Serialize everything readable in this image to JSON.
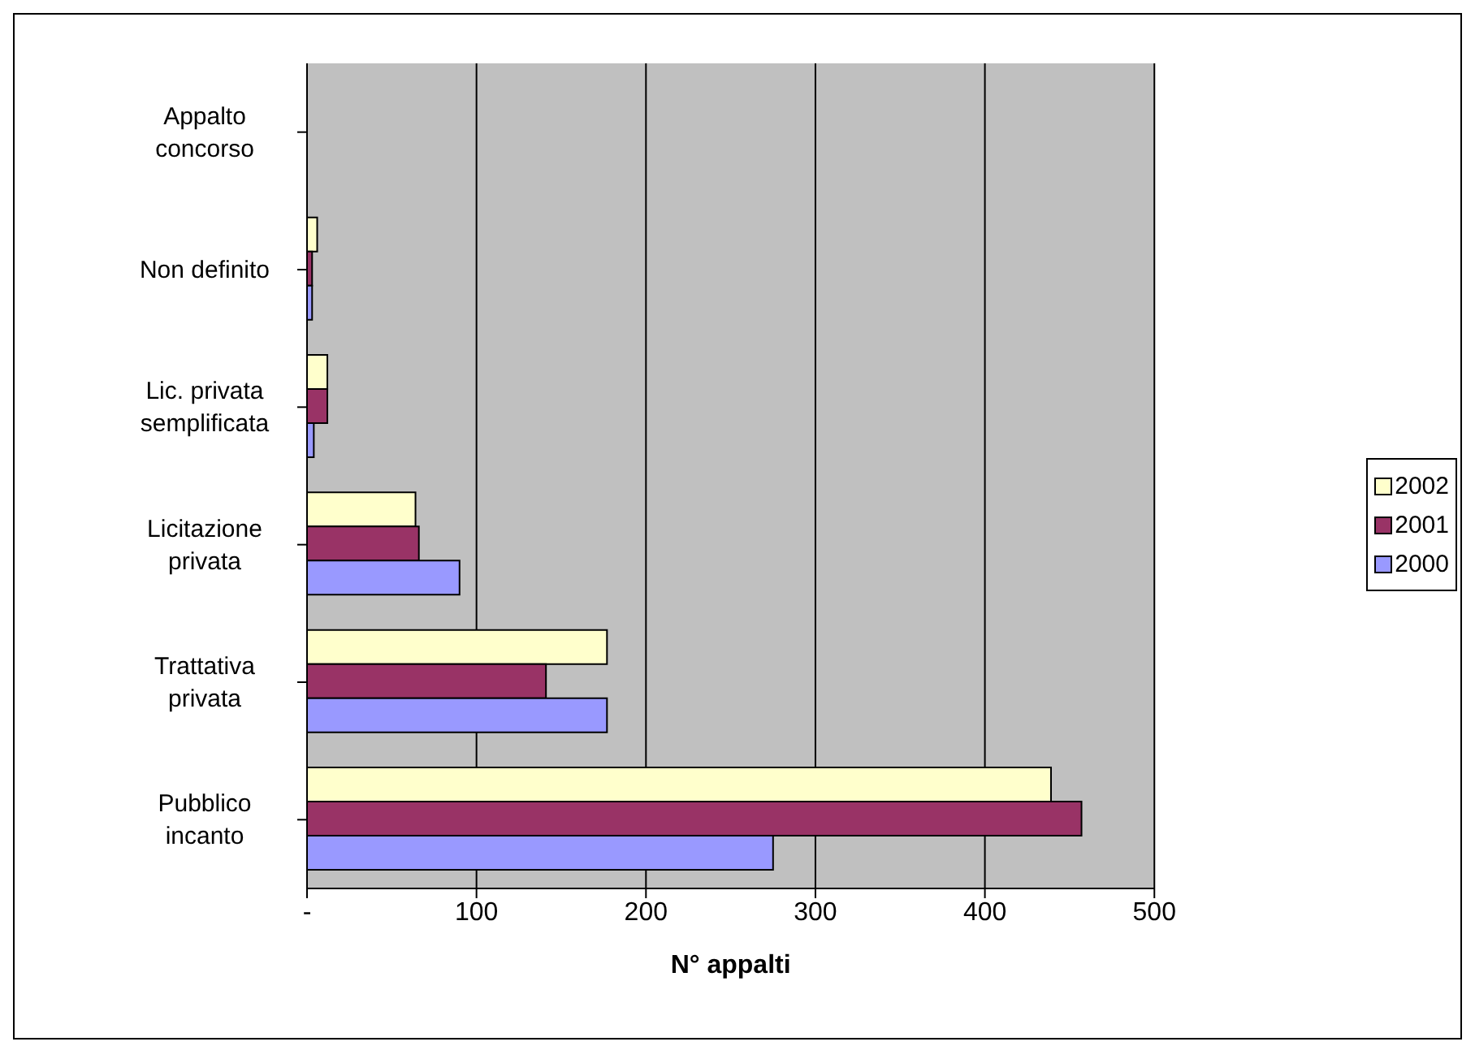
{
  "chart_data": {
    "type": "bar",
    "orientation": "horizontal",
    "xlabel": "N° appalti",
    "categories": [
      "Appalto concorso",
      "Non definito",
      "Lic. privata semplificata",
      "Licitazione privata",
      "Trattativa privata",
      "Pubblico incanto"
    ],
    "series": [
      {
        "name": "2002",
        "color": "#ffffcc",
        "values": [
          0,
          6,
          12,
          64,
          177,
          439
        ]
      },
      {
        "name": "2001",
        "color": "#993366",
        "values": [
          0,
          3,
          12,
          66,
          141,
          457
        ]
      },
      {
        "name": "2000",
        "color": "#9999ff",
        "values": [
          0,
          3,
          4,
          90,
          177,
          275
        ]
      }
    ],
    "xlim": [
      0,
      500
    ],
    "xticks": [
      {
        "value": 0,
        "label": "-"
      },
      100,
      200,
      300,
      400,
      500
    ],
    "grid": "x",
    "legend": "right"
  }
}
